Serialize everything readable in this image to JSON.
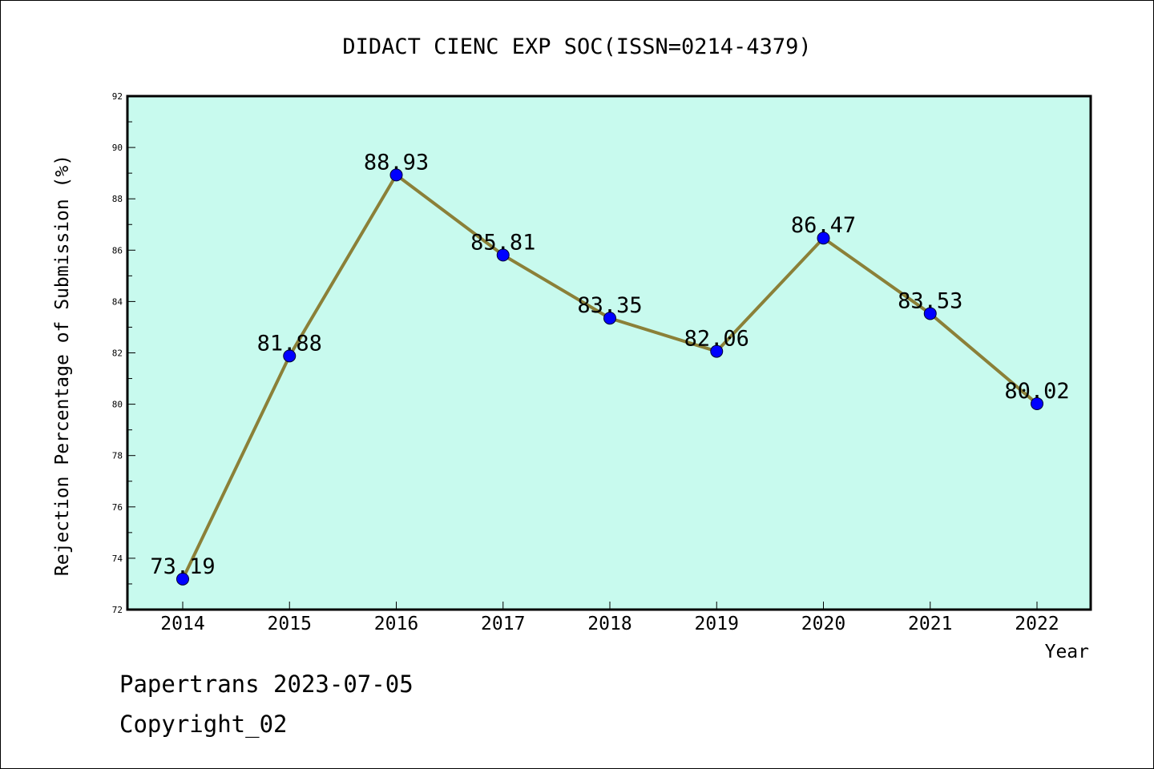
{
  "chart_data": {
    "type": "line",
    "title": "DIDACT CIENC EXP SOC(ISSN=0214-4379)",
    "xlabel": "Year",
    "ylabel": "Rejection Percentage of Submission (%)",
    "categories": [
      "2014",
      "2015",
      "2016",
      "2017",
      "2018",
      "2019",
      "2020",
      "2021",
      "2022"
    ],
    "values": [
      73.19,
      81.88,
      88.93,
      85.81,
      83.35,
      82.06,
      86.47,
      83.53,
      80.02
    ],
    "data_labels": [
      "73.19",
      "81.88",
      "88.93",
      "85.81",
      "83.35",
      "82.06",
      "86.47",
      "83.53",
      "80.02"
    ],
    "ylim": [
      72,
      92
    ],
    "y_ticks": [
      "72",
      "74",
      "76",
      "78",
      "80",
      "82",
      "84",
      "86",
      "88",
      "90",
      "92"
    ],
    "grid": false,
    "colors": {
      "plot_background": "#c8faee",
      "line": "#8b8038",
      "marker": "#0000ff"
    }
  },
  "footer": {
    "line1": "Papertrans 2023-07-05",
    "line2": "Copyright_02"
  }
}
